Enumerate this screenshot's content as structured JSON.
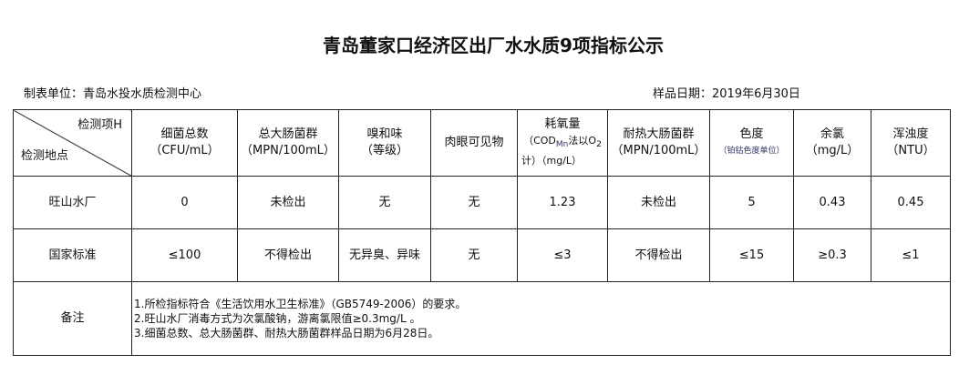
{
  "title": "青岛董家口经济区出厂水水质9项指标公示",
  "unit": "制表单位：青岛水投水质检测中心",
  "date": "样品日期：2019年6月30日",
  "header": {
    "item": "检测项H",
    "site": "检测地点",
    "cols": [
      {
        "name": "细菌总数",
        "unit": "（CFU/mL）"
      },
      {
        "name": "总大肠菌群",
        "unit": "（MPN/100mL）"
      },
      {
        "name": "嗅和味",
        "unit": "（等级）"
      },
      {
        "name": "肉眼可见物",
        "unit": ""
      },
      {
        "name": "耗氧量",
        "unit": "（COD",
        "sub": "Mn",
        "unit2": "法以O",
        "sub2": "2",
        "unit3": "计）（mg/L）"
      },
      {
        "name": "耐热大肠菌群",
        "unit": "（MPN/100mL）"
      },
      {
        "name": "色度",
        "unit": "（铂钴色度单位）"
      },
      {
        "name": "余氯",
        "unit": "（mg/L）"
      },
      {
        "name": "浑浊度",
        "unit": "（NTU）"
      }
    ]
  },
  "rows": [
    {
      "site": "旺山水厂",
      "values": [
        "0",
        "未检出",
        "无",
        "无",
        "1.23",
        "未检出",
        "5",
        "0.43",
        "0.45"
      ]
    },
    {
      "site": "国家标准",
      "values": [
        "≤100",
        "不得检出",
        "无异臭、异味",
        "无",
        "≤3",
        "不得检出",
        "≤15",
        "≥0.3",
        "≤1"
      ]
    }
  ],
  "notes": {
    "label": "备注",
    "lines": [
      "1.所检指标符合《生活饮用水卫生标准》（GB5749-2006）的要求。",
      "2.旺山水厂消毒方式为次氯酸钠，游离氯限值≥0.3mg/L 。",
      "3.细菌总数、总大肠菌群、耐热大肠菌群样品日期为6月28日。"
    ]
  }
}
